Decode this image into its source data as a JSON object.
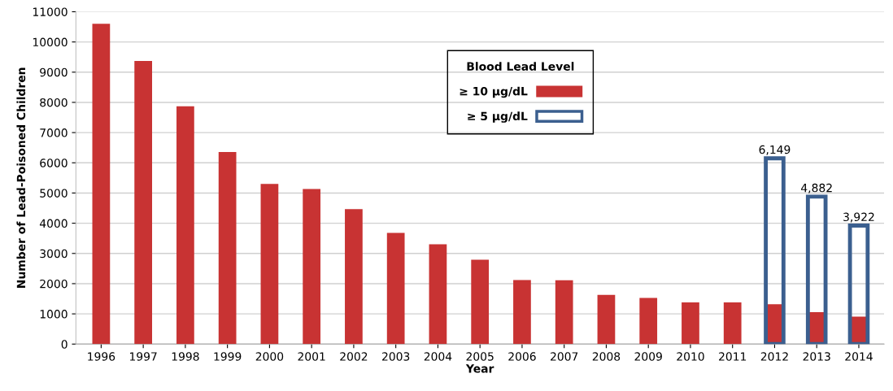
{
  "chart_data": {
    "type": "bar",
    "xlabel": "Year",
    "ylabel": "Number of Lead-Poisoned Children",
    "legend_title": "Blood Lead Level",
    "categories": [
      "1996",
      "1997",
      "1998",
      "1999",
      "2000",
      "2001",
      "2002",
      "2003",
      "2004",
      "2005",
      "2006",
      "2007",
      "2008",
      "2009",
      "2010",
      "2011",
      "2012",
      "2013",
      "2014"
    ],
    "series": [
      {
        "name": "≥ 5 µg/dL",
        "color": "#3b5f8f",
        "values": [
          null,
          null,
          null,
          null,
          null,
          null,
          null,
          null,
          null,
          null,
          null,
          null,
          null,
          null,
          null,
          null,
          6149,
          4882,
          3922
        ],
        "value_labels": [
          null,
          null,
          null,
          null,
          null,
          null,
          null,
          null,
          null,
          null,
          null,
          null,
          null,
          null,
          null,
          null,
          "6,149",
          "4,882",
          "3,922"
        ]
      },
      {
        "name": "≥ 10 µg/dL",
        "color": "#c83333",
        "values": [
          10600,
          9370,
          7870,
          6360,
          5300,
          5130,
          4470,
          3680,
          3300,
          2790,
          2120,
          2110,
          1630,
          1530,
          1380,
          1380,
          1320,
          1060,
          910
        ]
      }
    ],
    "ylim": [
      0,
      11000
    ],
    "yticks": [
      0,
      1000,
      2000,
      3000,
      4000,
      5000,
      6000,
      7000,
      8000,
      9000,
      10000,
      11000
    ],
    "grid": "y",
    "legend": "top"
  }
}
